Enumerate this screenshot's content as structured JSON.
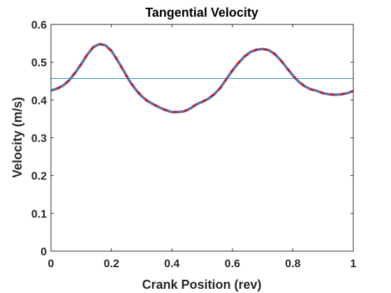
{
  "chart_data": {
    "type": "line",
    "title": "Tangential Velocity",
    "xlabel": "Crank Position (rev)",
    "ylabel": "Velocity (m/s)",
    "xlim": [
      0,
      1
    ],
    "ylim": [
      0,
      0.6
    ],
    "xticks": [
      0,
      0.2,
      0.4,
      0.6,
      0.8,
      1
    ],
    "xtick_labels": [
      "0",
      "0.2",
      "0.4",
      "0.6",
      "0.8",
      "1"
    ],
    "yticks": [
      0,
      0.1,
      0.2,
      0.3,
      0.4,
      0.5,
      0.6
    ],
    "ytick_labels": [
      "0",
      "0.1",
      "0.2",
      "0.3",
      "0.4",
      "0.5",
      "0.6"
    ],
    "grid": false,
    "legend": "none",
    "series": [
      {
        "color": "#c01c2c",
        "style": "solid",
        "x": [
          0,
          0.02,
          0.04,
          0.06,
          0.08,
          0.1,
          0.12,
          0.14,
          0.16,
          0.18,
          0.2,
          0.22,
          0.24,
          0.26,
          0.28,
          0.3,
          0.32,
          0.34,
          0.36,
          0.38,
          0.4,
          0.42,
          0.44,
          0.46,
          0.48,
          0.5,
          0.52,
          0.54,
          0.56,
          0.58,
          0.6,
          0.62,
          0.64,
          0.66,
          0.68,
          0.7,
          0.72,
          0.74,
          0.76,
          0.78,
          0.8,
          0.82,
          0.84,
          0.86,
          0.88,
          0.9,
          0.92,
          0.94,
          0.96,
          0.98,
          1.0
        ],
        "y": [
          0.425,
          0.43,
          0.438,
          0.452,
          0.472,
          0.495,
          0.52,
          0.54,
          0.548,
          0.545,
          0.53,
          0.505,
          0.478,
          0.45,
          0.428,
          0.41,
          0.397,
          0.388,
          0.38,
          0.373,
          0.368,
          0.368,
          0.37,
          0.377,
          0.388,
          0.395,
          0.403,
          0.415,
          0.432,
          0.455,
          0.478,
          0.498,
          0.515,
          0.527,
          0.533,
          0.535,
          0.532,
          0.522,
          0.505,
          0.485,
          0.465,
          0.448,
          0.436,
          0.428,
          0.424,
          0.418,
          0.415,
          0.414,
          0.415,
          0.418,
          0.424
        ]
      },
      {
        "color": "#2b8ad4",
        "style": "dashed",
        "x": [
          0,
          0.02,
          0.04,
          0.06,
          0.08,
          0.1,
          0.12,
          0.14,
          0.16,
          0.18,
          0.2,
          0.22,
          0.24,
          0.26,
          0.28,
          0.3,
          0.32,
          0.34,
          0.36,
          0.38,
          0.4,
          0.42,
          0.44,
          0.46,
          0.48,
          0.5,
          0.52,
          0.54,
          0.56,
          0.58,
          0.6,
          0.62,
          0.64,
          0.66,
          0.68,
          0.7,
          0.72,
          0.74,
          0.76,
          0.78,
          0.8,
          0.82,
          0.84,
          0.86,
          0.88,
          0.9,
          0.92,
          0.94,
          0.96,
          0.98,
          1.0
        ],
        "y": [
          0.425,
          0.43,
          0.438,
          0.452,
          0.472,
          0.495,
          0.52,
          0.54,
          0.548,
          0.545,
          0.53,
          0.505,
          0.478,
          0.45,
          0.428,
          0.41,
          0.397,
          0.388,
          0.38,
          0.373,
          0.368,
          0.368,
          0.37,
          0.377,
          0.388,
          0.395,
          0.403,
          0.415,
          0.432,
          0.455,
          0.478,
          0.498,
          0.515,
          0.527,
          0.533,
          0.535,
          0.532,
          0.522,
          0.505,
          0.485,
          0.465,
          0.448,
          0.436,
          0.428,
          0.424,
          0.418,
          0.415,
          0.414,
          0.415,
          0.418,
          0.424
        ]
      },
      {
        "color": "#2b8ad4",
        "style": "thin-solid",
        "x": [
          0,
          1
        ],
        "y": [
          0.457,
          0.457
        ]
      }
    ]
  }
}
